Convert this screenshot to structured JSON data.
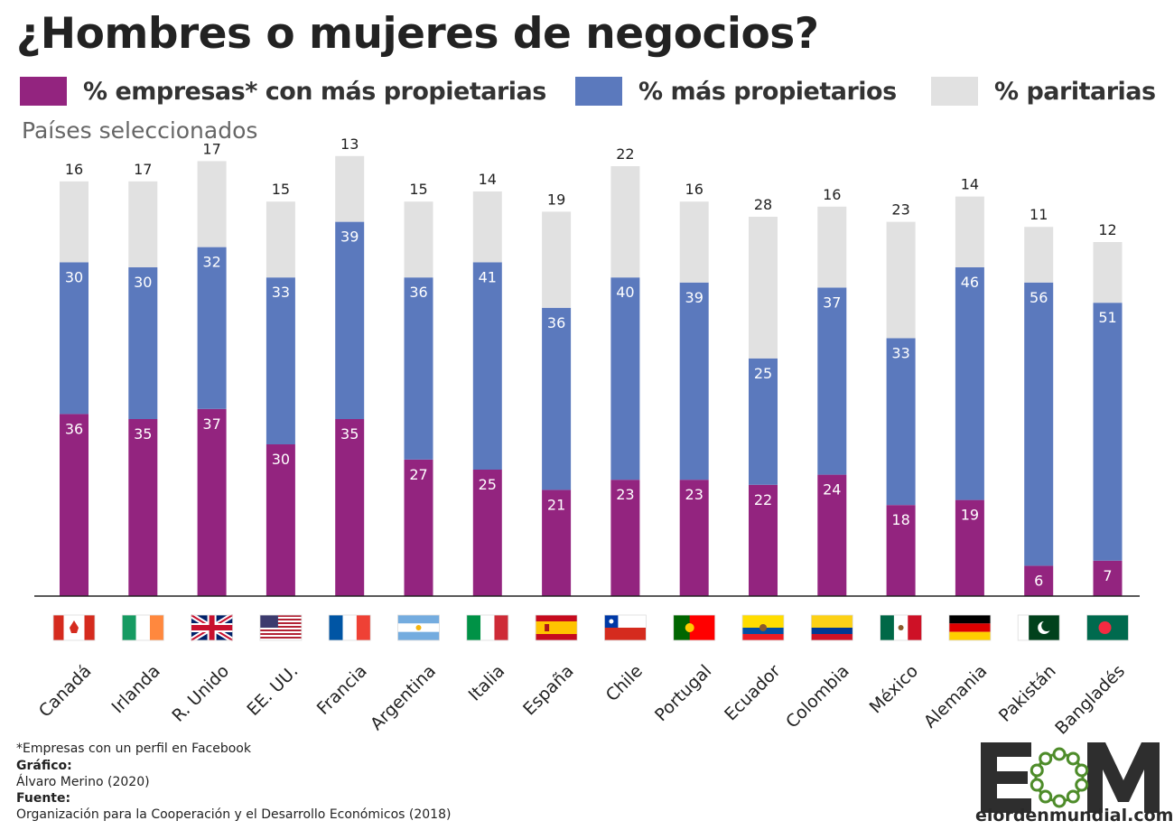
{
  "title": "¿Hombres o mujeres de negocios?",
  "subtitle": "Países seleccionados",
  "legend": [
    {
      "label": "% empresas* con más propietarias",
      "color": "#93247f"
    },
    {
      "label": "% más propietarios",
      "color": "#5b79bd"
    },
    {
      "label": "% paritarias",
      "color": "#e1e1e1"
    }
  ],
  "chart_data": {
    "type": "bar",
    "stacked": true,
    "categories": [
      "Canadá",
      "Irlanda",
      "R. Unido",
      "EE. UU.",
      "Francia",
      "Argentina",
      "Italia",
      "España",
      "Chile",
      "Portugal",
      "Ecuador",
      "Colombia",
      "México",
      "Alemania",
      "Pakistán",
      "Bangladés"
    ],
    "series": [
      {
        "name": "% empresas* con más propietarias",
        "color": "#93247f",
        "values": [
          36,
          35,
          37,
          30,
          35,
          27,
          25,
          21,
          23,
          23,
          22,
          24,
          18,
          19,
          6,
          7
        ]
      },
      {
        "name": "% más propietarios",
        "color": "#5b79bd",
        "values": [
          30,
          30,
          32,
          33,
          39,
          36,
          41,
          36,
          40,
          39,
          25,
          37,
          33,
          46,
          56,
          51
        ]
      },
      {
        "name": "% paritarias",
        "color": "#e1e1e1",
        "values": [
          16,
          17,
          17,
          15,
          13,
          15,
          14,
          19,
          22,
          16,
          28,
          16,
          23,
          14,
          11,
          12
        ]
      }
    ],
    "flags": [
      "canada-flag",
      "ireland-flag",
      "uk-flag",
      "usa-flag",
      "france-flag",
      "argentina-flag",
      "italy-flag",
      "spain-flag",
      "chile-flag",
      "portugal-flag",
      "ecuador-flag",
      "colombia-flag",
      "mexico-flag",
      "germany-flag",
      "pakistan-flag",
      "bangladesh-flag"
    ],
    "grid": false,
    "legend_position": "top"
  },
  "footer": {
    "note": "*Empresas con un perfil en Facebook",
    "grafico_label": "Gráfico:",
    "grafico_value": "Álvaro Merino (2020)",
    "fuente_label": "Fuente:",
    "fuente_value": "Organización para la Cooperación y el Desarrollo Económicos (2018)"
  },
  "logo": {
    "text": "elordenmundial.com",
    "color": "#4e8c2a"
  }
}
